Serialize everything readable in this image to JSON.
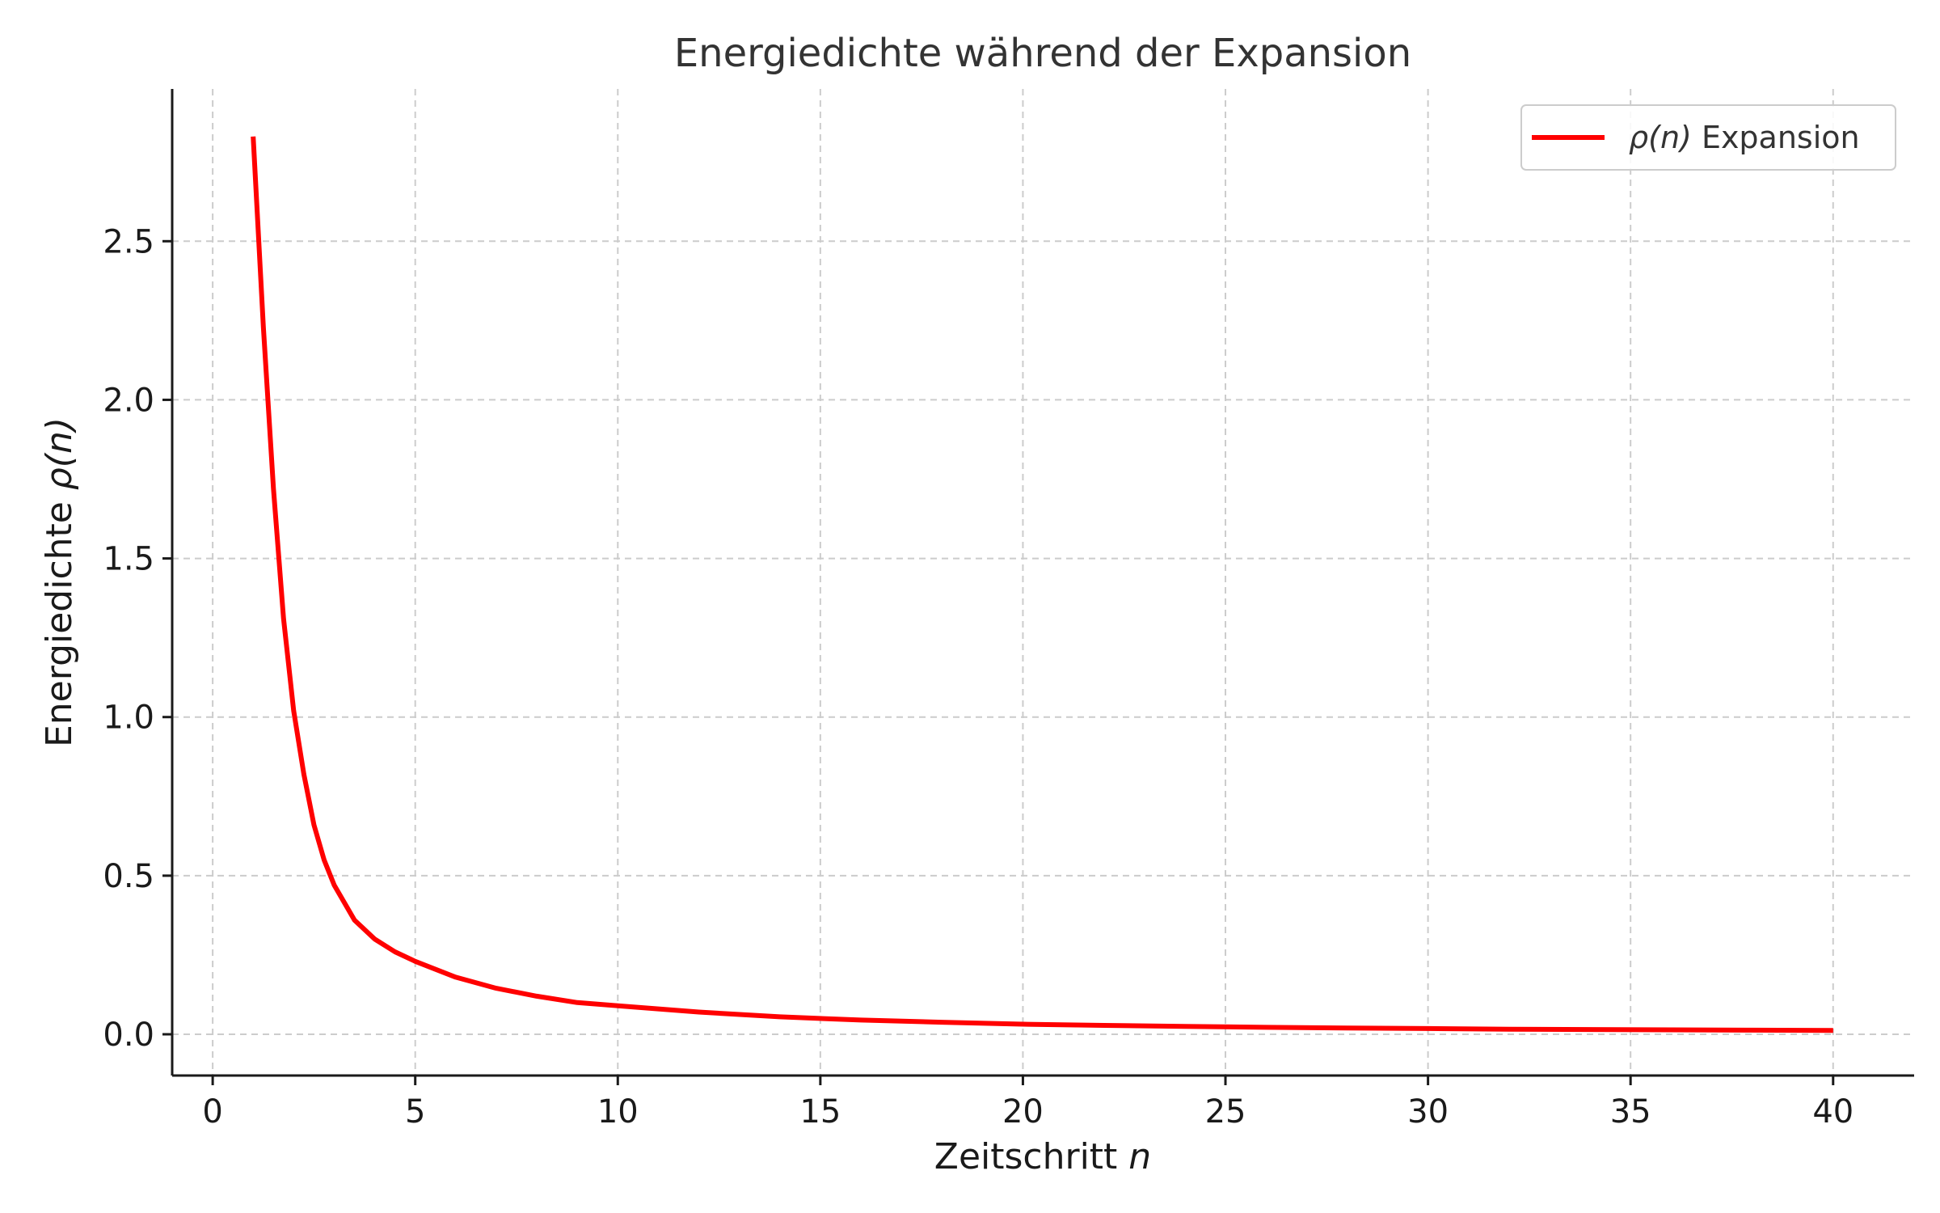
{
  "chart_data": {
    "type": "line",
    "title": "Energiedichte während der Expansion",
    "xlabel_text": "Zeitschritt ",
    "xlabel_var": "n",
    "ylabel_text": "Energiedichte ",
    "ylabel_var": "ρ(n)",
    "xlim": [
      -1,
      42
    ],
    "ylim": [
      -0.13,
      2.98
    ],
    "xticks": [
      0,
      5,
      10,
      15,
      20,
      25,
      30,
      35,
      40
    ],
    "xtick_labels": [
      "0",
      "5",
      "10",
      "15",
      "20",
      "25",
      "30",
      "35",
      "40"
    ],
    "yticks": [
      0.0,
      0.5,
      1.0,
      1.5,
      2.0,
      2.5
    ],
    "ytick_labels": [
      "0.0",
      "0.5",
      "1.0",
      "1.5",
      "2.0",
      "2.5"
    ],
    "grid": true,
    "legend_position": "top-right",
    "series": [
      {
        "legend_var": "ρ(n)",
        "legend_text": " Expansion",
        "color": "#ff0000",
        "x": [
          1,
          1.25,
          1.5,
          1.75,
          2,
          2.25,
          2.5,
          2.75,
          3,
          3.5,
          4,
          4.5,
          5,
          6,
          7,
          8,
          9,
          10,
          12,
          14,
          16,
          18,
          20,
          22,
          24,
          26,
          28,
          30,
          32,
          34,
          36,
          38,
          40
        ],
        "y": [
          2.83,
          2.23,
          1.72,
          1.31,
          1.02,
          0.82,
          0.66,
          0.55,
          0.47,
          0.36,
          0.3,
          0.26,
          0.23,
          0.18,
          0.145,
          0.12,
          0.1,
          0.09,
          0.07,
          0.055,
          0.045,
          0.038,
          0.032,
          0.028,
          0.025,
          0.022,
          0.02,
          0.018,
          0.016,
          0.015,
          0.014,
          0.013,
          0.012
        ]
      }
    ]
  }
}
